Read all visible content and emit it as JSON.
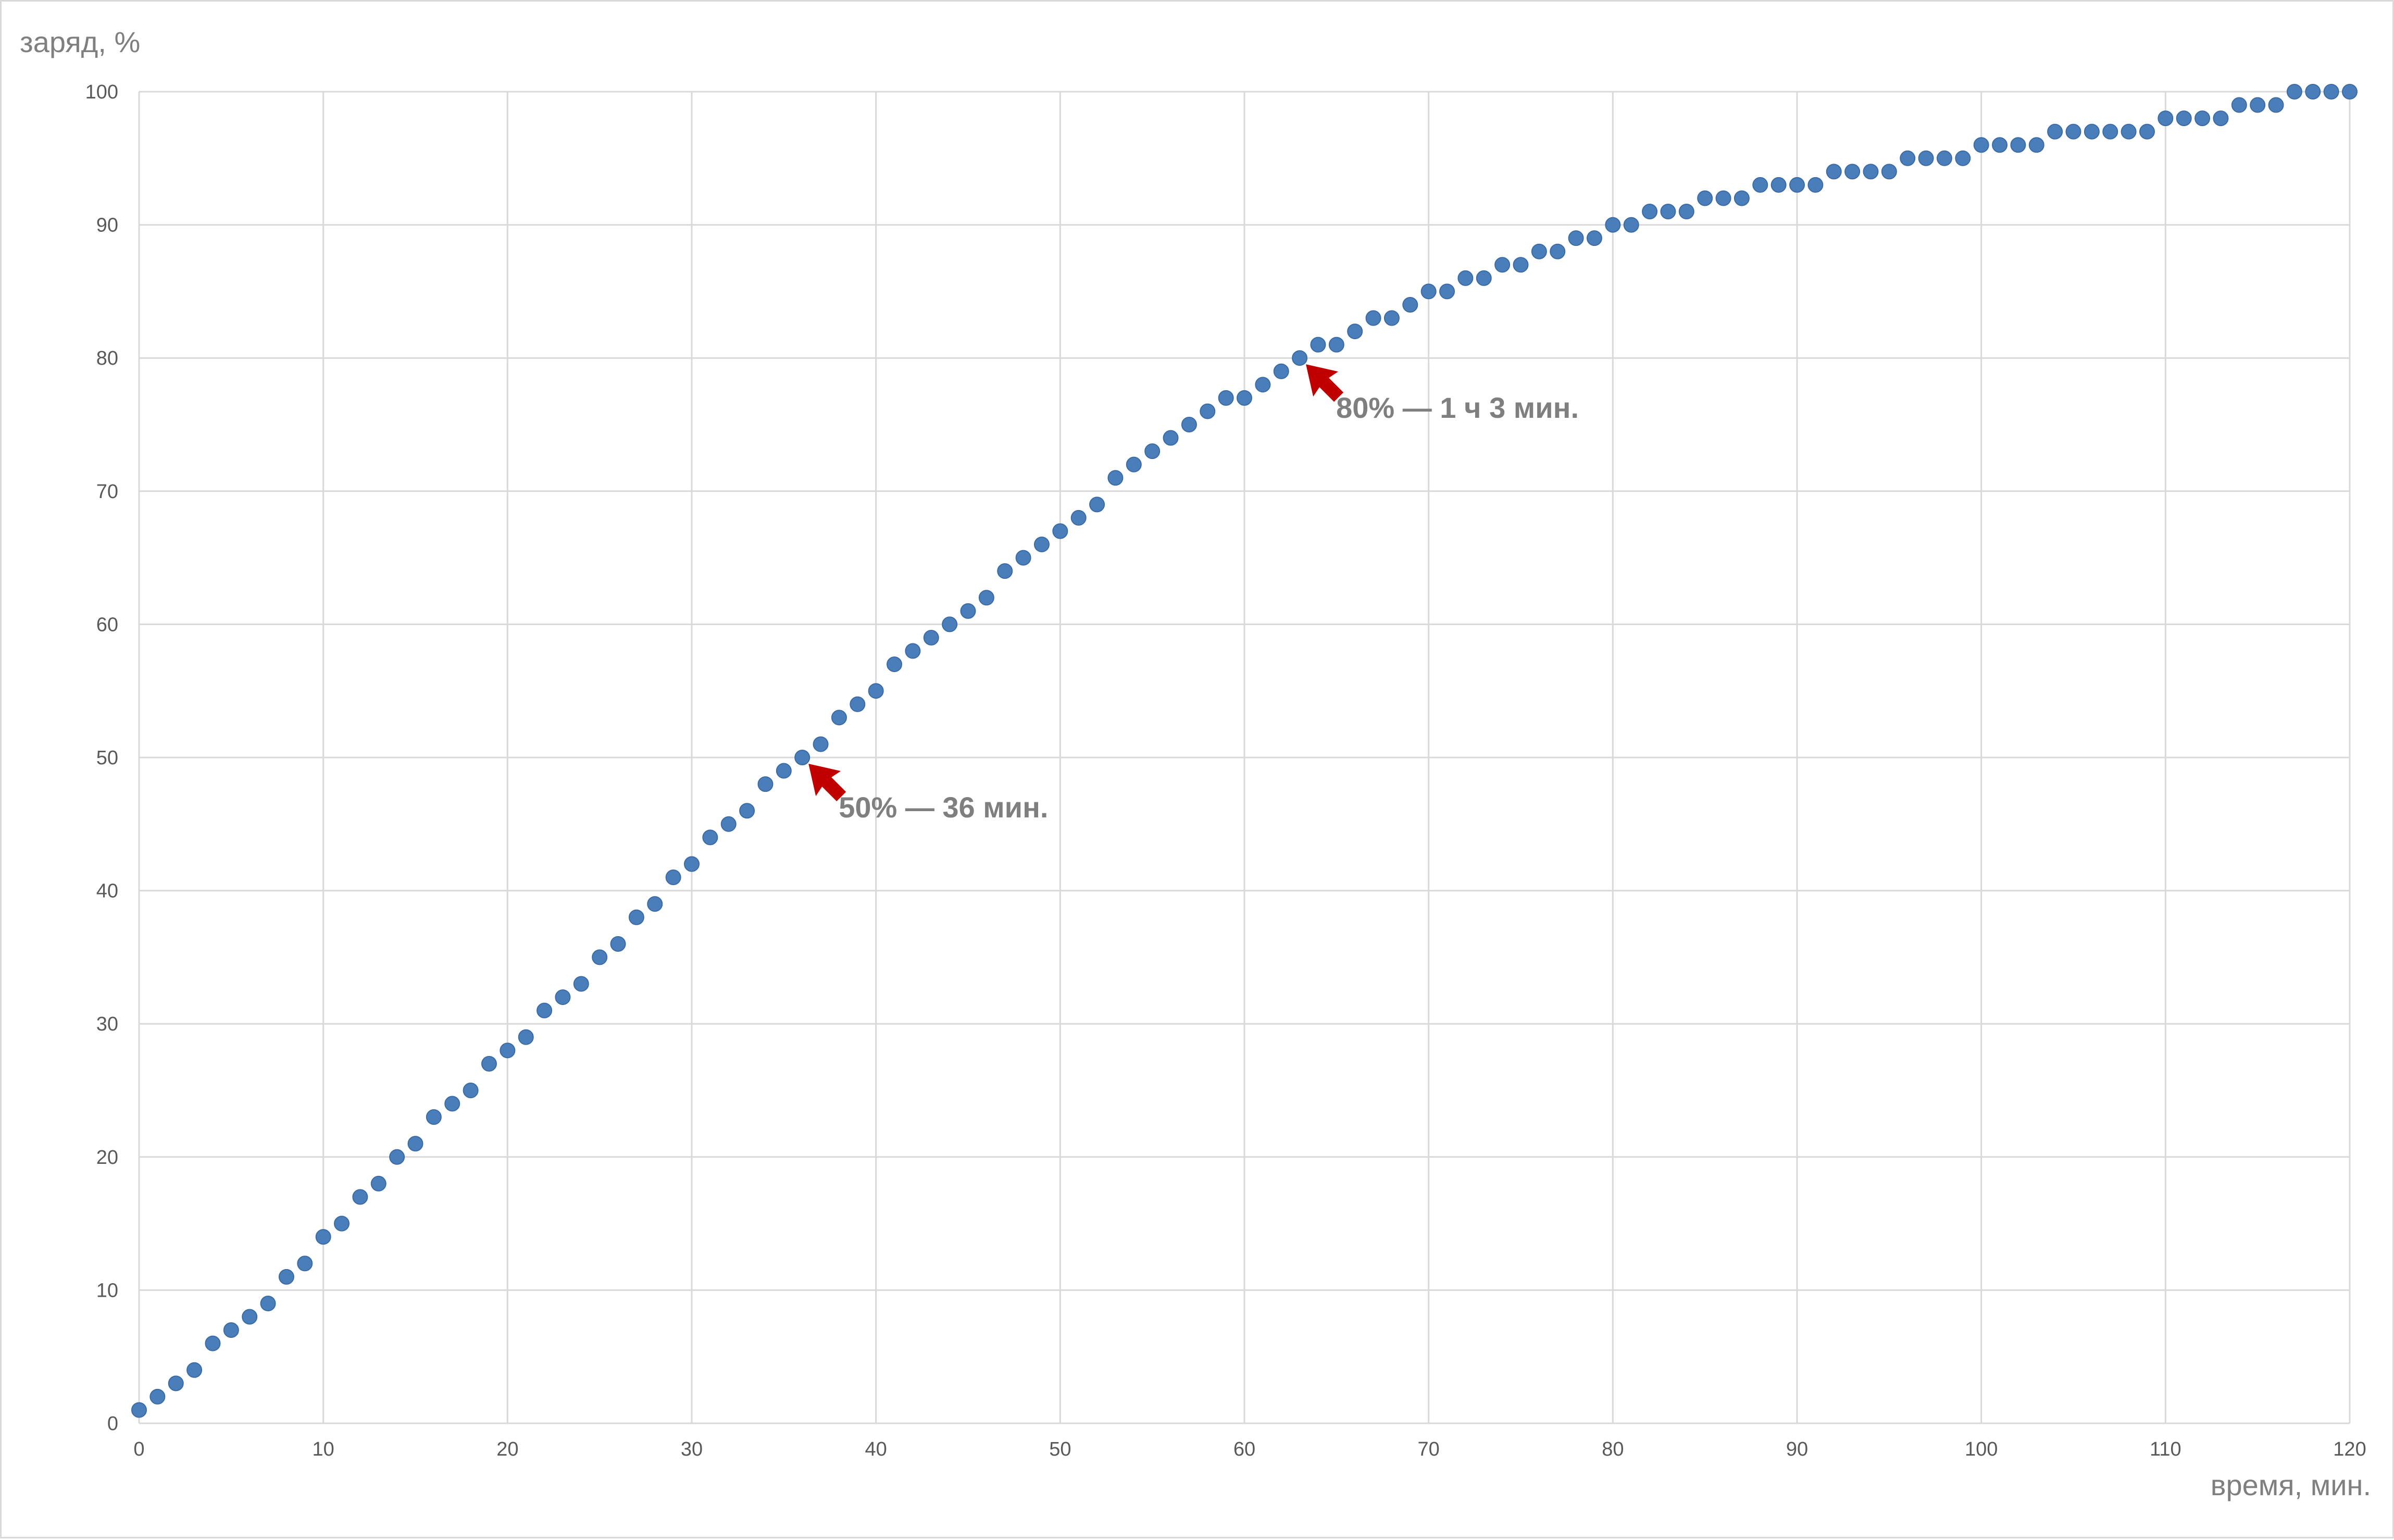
{
  "chart_data": {
    "type": "scatter",
    "title": "",
    "xlabel": "время, мин.",
    "ylabel": "заряд, %",
    "xlim": [
      0,
      120
    ],
    "ylim": [
      0,
      100
    ],
    "xticks": [
      0,
      10,
      20,
      30,
      40,
      50,
      60,
      70,
      80,
      90,
      100,
      110,
      120
    ],
    "yticks": [
      0,
      10,
      20,
      30,
      40,
      50,
      60,
      70,
      80,
      90,
      100
    ],
    "grid": true,
    "legend": "none",
    "marker_color": "#4a7ebb",
    "annotation_color": "#c00000",
    "x": [
      0,
      1,
      2,
      3,
      4,
      5,
      6,
      7,
      8,
      9,
      10,
      11,
      12,
      13,
      14,
      15,
      16,
      17,
      18,
      19,
      20,
      21,
      22,
      23,
      24,
      25,
      26,
      27,
      28,
      29,
      30,
      31,
      32,
      33,
      34,
      35,
      36,
      37,
      38,
      39,
      40,
      41,
      42,
      43,
      44,
      45,
      46,
      47,
      48,
      49,
      50,
      51,
      52,
      53,
      54,
      55,
      56,
      57,
      58,
      59,
      60,
      61,
      62,
      63,
      64,
      65,
      66,
      67,
      68,
      69,
      70,
      71,
      72,
      73,
      74,
      75,
      76,
      77,
      78,
      79,
      80,
      81,
      82,
      83,
      84,
      85,
      86,
      87,
      88,
      89,
      90,
      91,
      92,
      93,
      94,
      95,
      96,
      97,
      98,
      99,
      100,
      101,
      102,
      103,
      104,
      105,
      106,
      107,
      108,
      109,
      110,
      111,
      112,
      113,
      114,
      115,
      116,
      117,
      118,
      119,
      120
    ],
    "y": [
      1,
      2,
      3,
      4,
      6,
      7,
      8,
      9,
      11,
      12,
      14,
      15,
      17,
      18,
      20,
      21,
      23,
      24,
      25,
      27,
      28,
      29,
      31,
      32,
      33,
      35,
      36,
      38,
      39,
      41,
      42,
      44,
      45,
      46,
      48,
      49,
      50,
      51,
      53,
      54,
      55,
      57,
      58,
      59,
      60,
      61,
      62,
      64,
      65,
      66,
      67,
      68,
      69,
      71,
      72,
      73,
      74,
      75,
      76,
      77,
      77,
      78,
      79,
      80,
      81,
      81,
      82,
      83,
      83,
      84,
      85,
      85,
      86,
      86,
      87,
      87,
      88,
      88,
      89,
      89,
      90,
      90,
      91,
      91,
      91,
      92,
      92,
      92,
      93,
      93,
      93,
      93,
      94,
      94,
      94,
      94,
      95,
      95,
      95,
      95,
      96,
      96,
      96,
      96,
      97,
      97,
      97,
      97,
      97,
      97,
      98,
      98,
      98,
      98,
      99,
      99,
      99,
      100,
      100,
      100,
      100
    ],
    "annotations": [
      {
        "text": "50% — 36 мин.",
        "x": 36,
        "y": 50
      },
      {
        "text": "80% — 1 ч 3 мин.",
        "x": 63,
        "y": 80
      }
    ]
  }
}
